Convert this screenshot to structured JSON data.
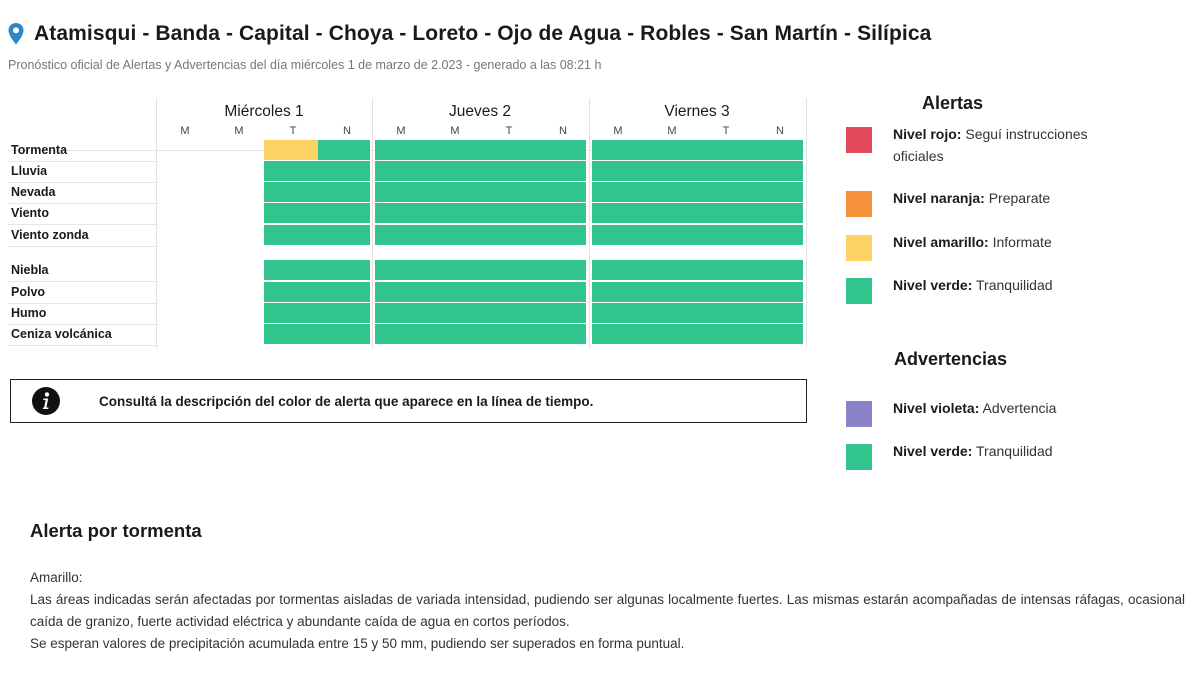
{
  "header": {
    "title": "Atamisqui - Banda - Capital - Choya - Loreto - Ojo de Agua - Robles - San Martín - Silípica",
    "subtitle": "Pronóstico oficial de Alertas y Advertencias del día miércoles 1 de marzo de 2.023 - generado a las 08:21 h"
  },
  "forecast": {
    "days": [
      {
        "label": "Miércoles 1",
        "periods": [
          "M",
          "M",
          "T",
          "N"
        ]
      },
      {
        "label": "Jueves 2",
        "periods": [
          "M",
          "M",
          "T",
          "N"
        ]
      },
      {
        "label": "Viernes 3",
        "periods": [
          "M",
          "M",
          "T",
          "N"
        ]
      }
    ],
    "rows": [
      {
        "label": "Tormenta",
        "levels": [
          null,
          null,
          "amarillo",
          "verde",
          "verde",
          "verde",
          "verde",
          "verde",
          "verde",
          "verde",
          "verde",
          "verde"
        ]
      },
      {
        "label": "Lluvia",
        "levels": [
          null,
          null,
          "verde",
          "verde",
          "verde",
          "verde",
          "verde",
          "verde",
          "verde",
          "verde",
          "verde",
          "verde"
        ]
      },
      {
        "label": "Nevada",
        "levels": [
          null,
          null,
          "verde",
          "verde",
          "verde",
          "verde",
          "verde",
          "verde",
          "verde",
          "verde",
          "verde",
          "verde"
        ]
      },
      {
        "label": "Viento",
        "levels": [
          null,
          null,
          "verde",
          "verde",
          "verde",
          "verde",
          "verde",
          "verde",
          "verde",
          "verde",
          "verde",
          "verde"
        ]
      },
      {
        "label": "Viento zonda",
        "levels": [
          null,
          null,
          "verde",
          "verde",
          "verde",
          "verde",
          "verde",
          "verde",
          "verde",
          "verde",
          "verde",
          "verde"
        ]
      },
      {
        "label": "Niebla",
        "levels": [
          null,
          null,
          "verde",
          "verde",
          "verde",
          "verde",
          "verde",
          "verde",
          "verde",
          "verde",
          "verde",
          "verde"
        ]
      },
      {
        "label": "Polvo",
        "levels": [
          null,
          null,
          "verde",
          "verde",
          "verde",
          "verde",
          "verde",
          "verde",
          "verde",
          "verde",
          "verde",
          "verde"
        ]
      },
      {
        "label": "Humo",
        "levels": [
          null,
          null,
          "verde",
          "verde",
          "verde",
          "verde",
          "verde",
          "verde",
          "verde",
          "verde",
          "verde",
          "verde"
        ]
      },
      {
        "label": "Ceniza volcánica",
        "levels": [
          null,
          null,
          "verde",
          "verde",
          "verde",
          "verde",
          "verde",
          "verde",
          "verde",
          "verde",
          "verde",
          "verde"
        ]
      }
    ]
  },
  "info_box": {
    "icon": "info-icon",
    "text": "Consultá la descripción del color de alerta que aparece en la línea de tiempo."
  },
  "legend": {
    "alertas_title": "Alertas",
    "alertas": [
      {
        "level": "rojo",
        "name": "Nivel rojo:",
        "desc": " Seguí instrucciones oficiales",
        "color": "#e24a5c"
      },
      {
        "level": "naranja",
        "name": "Nivel naranja:",
        "desc": " Preparate",
        "color": "#f4913a"
      },
      {
        "level": "amarillo",
        "name": "Nivel amarillo:",
        "desc": " Informate",
        "color": "#fdd264"
      },
      {
        "level": "verde",
        "name": "Nivel verde:",
        "desc": " Tranquilidad",
        "color": "#31c48d"
      }
    ],
    "advertencias_title": "Advertencias",
    "advertencias": [
      {
        "level": "violeta",
        "name": "Nivel violeta:",
        "desc": " Advertencia",
        "color": "#8b83c8"
      },
      {
        "level": "verde",
        "name": "Nivel verde:",
        "desc": " Tranquilidad",
        "color": "#31c48d"
      }
    ]
  },
  "storm_alert": {
    "title": "Alerta por tormenta",
    "level_label": "Amarillo:",
    "paragraph1": "Las áreas indicadas serán afectadas por tormentas aisladas de variada intensidad, pudiendo ser algunas localmente fuertes. Las mismas estarán acompañadas de intensas ráfagas, ocasional caída de granizo, fuerte actividad eléctrica y abundante caída de agua en cortos períodos.",
    "paragraph2": "Se esperan valores de precipitación acumulada entre 15 y 50 mm, pudiendo ser superados en forma puntual."
  }
}
